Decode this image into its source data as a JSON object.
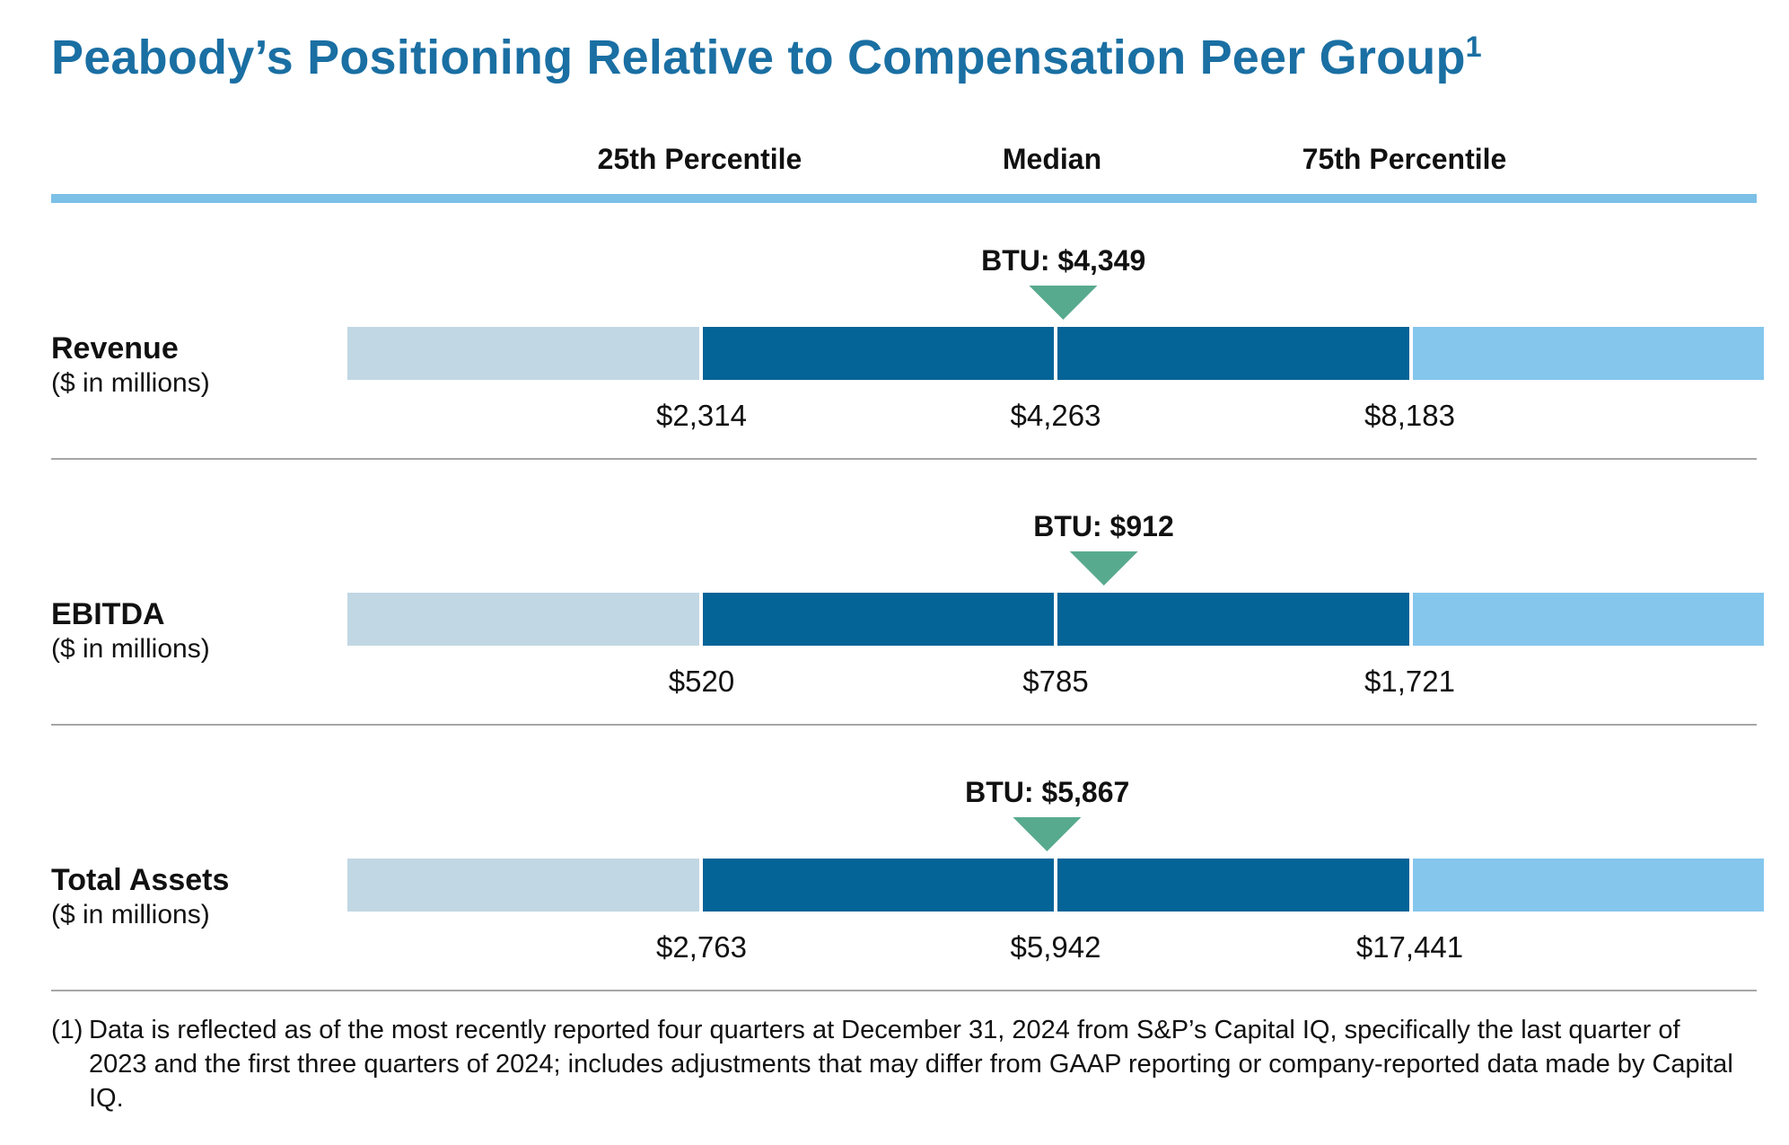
{
  "title": {
    "text": "Peabody’s Positioning Relative to Compensation Peer Group",
    "superscript": "1"
  },
  "column_headers": {
    "p25": "25th Percentile",
    "median": "Median",
    "p75": "75th Percentile"
  },
  "rows": [
    {
      "label": "Revenue",
      "sublabel": "($ in millions)",
      "btu_label": "BTU: $4,349",
      "p25_label": "$2,314",
      "median_label": "$4,263",
      "p75_label": "$8,183"
    },
    {
      "label": "EBITDA",
      "sublabel": "($ in millions)",
      "btu_label": "BTU: $912",
      "p25_label": "$520",
      "median_label": "$785",
      "p75_label": "$1,721"
    },
    {
      "label": "Total Assets",
      "sublabel": "($ in millions)",
      "btu_label": "BTU: $5,867",
      "p25_label": "$2,763",
      "median_label": "$5,942",
      "p75_label": "$17,441"
    }
  ],
  "footnote": {
    "marker": "(1)",
    "text": "Data is reflected as of the most recently reported four quarters at December 31, 2024 from S&P’s Capital IQ, specifically the last quarter of 2023 and the first three quarters of 2024; includes adjustments that may differ from GAAP reporting or company-reported data made by Capital IQ."
  },
  "colors": {
    "title-blue": "#1a6fa3",
    "rule-blue": "#7cc0e8",
    "quartile-outer-left": "#c1d7e3",
    "quartile-inner": "#046397",
    "quartile-outer-right": "#85c6ed",
    "marker-green": "#58aa8e",
    "divider-gray": "#a6a6a6",
    "text-black": "#111111"
  },
  "chart_data": {
    "type": "bar",
    "subtype": "quartile-position-ranges",
    "orientation": "horizontal",
    "title": "Peabody’s Positioning Relative to Compensation Peer Group",
    "title_superscript": "1",
    "columns": [
      "25th Percentile",
      "Median",
      "75th Percentile"
    ],
    "series": [
      {
        "name": "Revenue ($ in millions)",
        "p25": 2314,
        "median": 4263,
        "p75": 8183,
        "btu": 4349
      },
      {
        "name": "EBITDA ($ in millions)",
        "p25": 520,
        "median": 785,
        "p75": 1721,
        "btu": 912
      },
      {
        "name": "Total Assets ($ in millions)",
        "p25": 2763,
        "median": 5942,
        "p75": 17441,
        "btu": 5867
      }
    ],
    "marker_label_prefix": "BTU",
    "marker_shape": "down-triangle",
    "legend_position": "none",
    "grid": false
  }
}
